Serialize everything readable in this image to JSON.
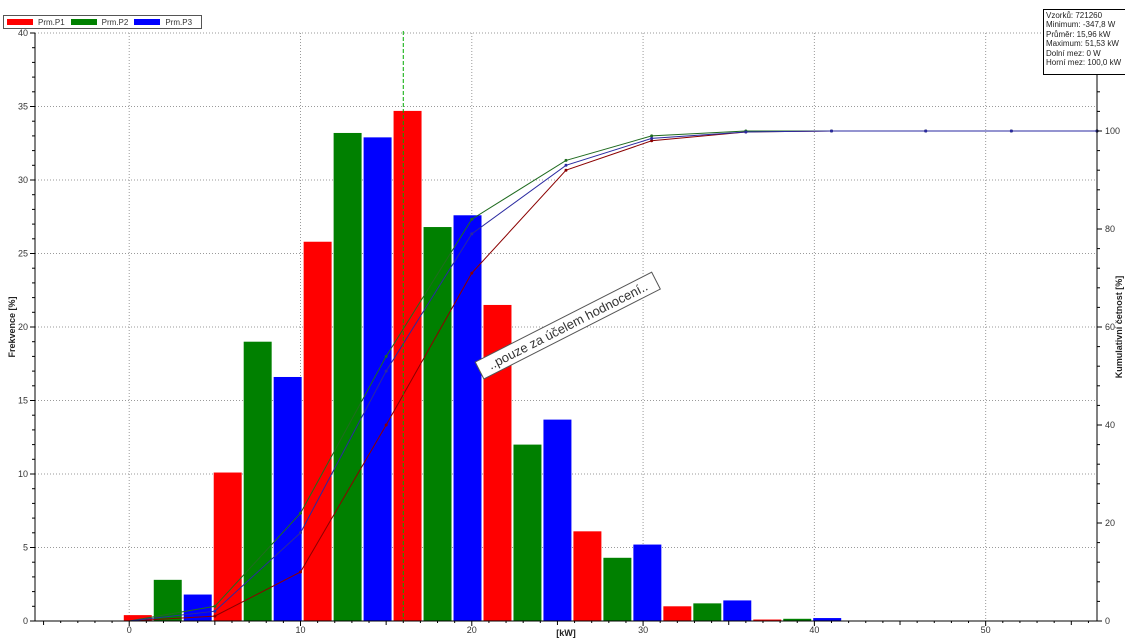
{
  "legend": [
    {
      "name": "Prm.P1",
      "color": "#ff0000"
    },
    {
      "name": "Prm.P2",
      "color": "#008000"
    },
    {
      "name": "Prm.P3",
      "color": "#0000ff"
    }
  ],
  "stats": [
    "Vzorků:  721260",
    "Minimum: -347,8 W",
    "Průměr: 15,96 kW",
    "Maximum: 51,53 kW",
    "Dolní mez: 0 W",
    "Horní mez: 100,0 kW"
  ],
  "annotation": "..pouze za účelem hodnocení..",
  "chart_data": {
    "type": "bar",
    "xlabel": "[kW]",
    "ylabel": "Frekvence [%]",
    "y2label": "Kumulativní četnost [%]",
    "xlim": [
      -5.5,
      56.5
    ],
    "ylim": [
      0,
      40
    ],
    "y2lim": [
      0,
      120
    ],
    "xticks": [
      0,
      10,
      20,
      30,
      40,
      50
    ],
    "yticks": [
      0,
      5,
      10,
      15,
      20,
      25,
      30,
      35,
      40
    ],
    "y2ticks": [
      0,
      20,
      40,
      60,
      80,
      100
    ],
    "mean_line_x": 16.0,
    "series": [
      {
        "name": "Prm.P1",
        "color": "#ff0000",
        "x": [
          0.5,
          5.75,
          11.0,
          16.25,
          21.5,
          26.75,
          32.0,
          37.25
        ],
        "values": [
          0.4,
          10.1,
          25.8,
          34.7,
          21.5,
          6.1,
          1.0,
          0.1
        ]
      },
      {
        "name": "Prm.P2",
        "color": "#008000",
        "x": [
          2.25,
          7.5,
          12.75,
          18.0,
          23.25,
          28.5,
          33.75,
          39.0
        ],
        "values": [
          2.8,
          19.0,
          33.2,
          26.8,
          12.0,
          4.3,
          1.2,
          0.15
        ]
      },
      {
        "name": "Prm.P3",
        "color": "#0000ff",
        "x": [
          4.0,
          9.25,
          14.5,
          19.75,
          25.0,
          30.25,
          35.5,
          40.75
        ],
        "values": [
          1.8,
          16.6,
          32.9,
          27.6,
          13.7,
          5.2,
          1.4,
          0.2
        ]
      }
    ],
    "cumulative": [
      {
        "name": "Prm.P1",
        "color": "#8b0000",
        "x": [
          0,
          5,
          10,
          15,
          20,
          25.5,
          30.5,
          36,
          41,
          46.5,
          51.5,
          56.5
        ],
        "values": [
          0,
          1,
          10,
          40,
          71,
          92,
          98,
          99.8,
          100,
          100,
          100,
          100
        ]
      },
      {
        "name": "Prm.P2",
        "color": "#1f6b1f",
        "x": [
          0,
          5,
          10,
          15,
          20,
          25.5,
          30.5,
          36,
          41,
          46.5,
          51.5,
          56.5
        ],
        "values": [
          0,
          3,
          22,
          54,
          82,
          94,
          99,
          100,
          100,
          100,
          100,
          100
        ]
      },
      {
        "name": "Prm.P3",
        "color": "#2a2aa0",
        "x": [
          0,
          5,
          10,
          15,
          20,
          25.5,
          30.5,
          36,
          41,
          46.5,
          51.5,
          56.5
        ],
        "values": [
          0,
          2,
          18,
          51,
          79,
          93,
          98.5,
          99.8,
          100,
          100,
          100,
          100
        ]
      }
    ]
  }
}
